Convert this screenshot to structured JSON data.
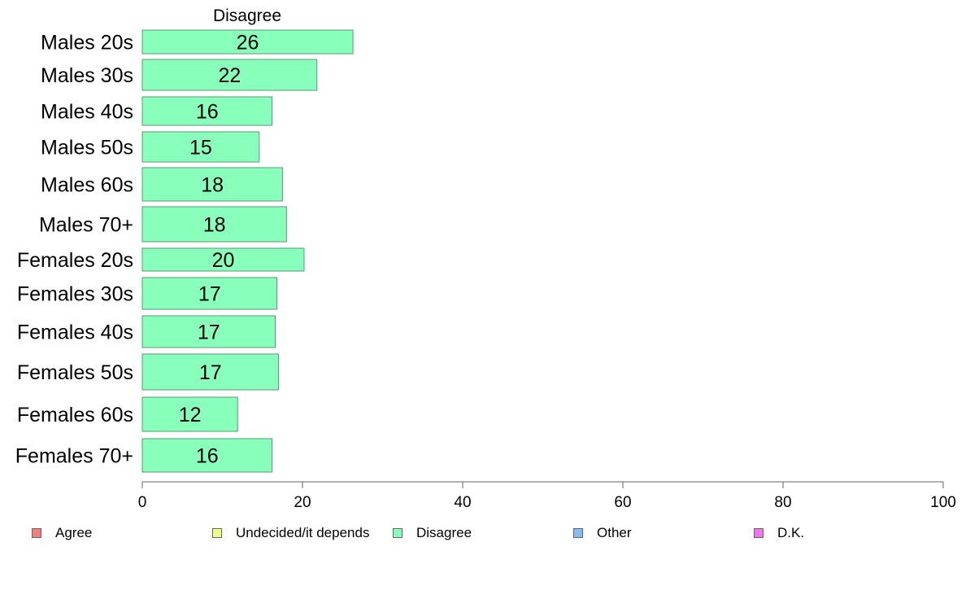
{
  "chart_data": {
    "type": "bar",
    "orientation": "horizontal",
    "title": "Disagree",
    "categories": [
      "Males 20s",
      "Males 30s",
      "Males 40s",
      "Males 50s",
      "Males 60s",
      "Males 70+",
      "Females 20s",
      "Females 30s",
      "Females 40s",
      "Females 50s",
      "Females 60s",
      "Females 70+"
    ],
    "series": [
      {
        "name": "Disagree",
        "values": [
          26.3,
          21.8,
          16.2,
          14.6,
          17.5,
          18.0,
          20.2,
          16.8,
          16.6,
          17.0,
          11.9,
          16.2
        ]
      }
    ],
    "value_labels": [
      "26",
      "22",
      "16",
      "15",
      "18",
      "18",
      "20",
      "17",
      "17",
      "17",
      "12",
      "16"
    ],
    "xlim": [
      0,
      100
    ],
    "xticks": [
      "0",
      "20",
      "40",
      "60",
      "80",
      "100"
    ],
    "xlabel": "",
    "ylabel": "",
    "grid": false,
    "bar_color": "#88ffbb",
    "legend": {
      "position": "bottom",
      "items": [
        {
          "label": "Agree",
          "color": "#f08080"
        },
        {
          "label": "Undecided/it depends",
          "color": "#eeff88"
        },
        {
          "label": "Disagree",
          "color": "#88ffbb"
        },
        {
          "label": "Other",
          "color": "#88bbf0"
        },
        {
          "label": "D.K.",
          "color": "#ee77ee"
        }
      ]
    }
  }
}
